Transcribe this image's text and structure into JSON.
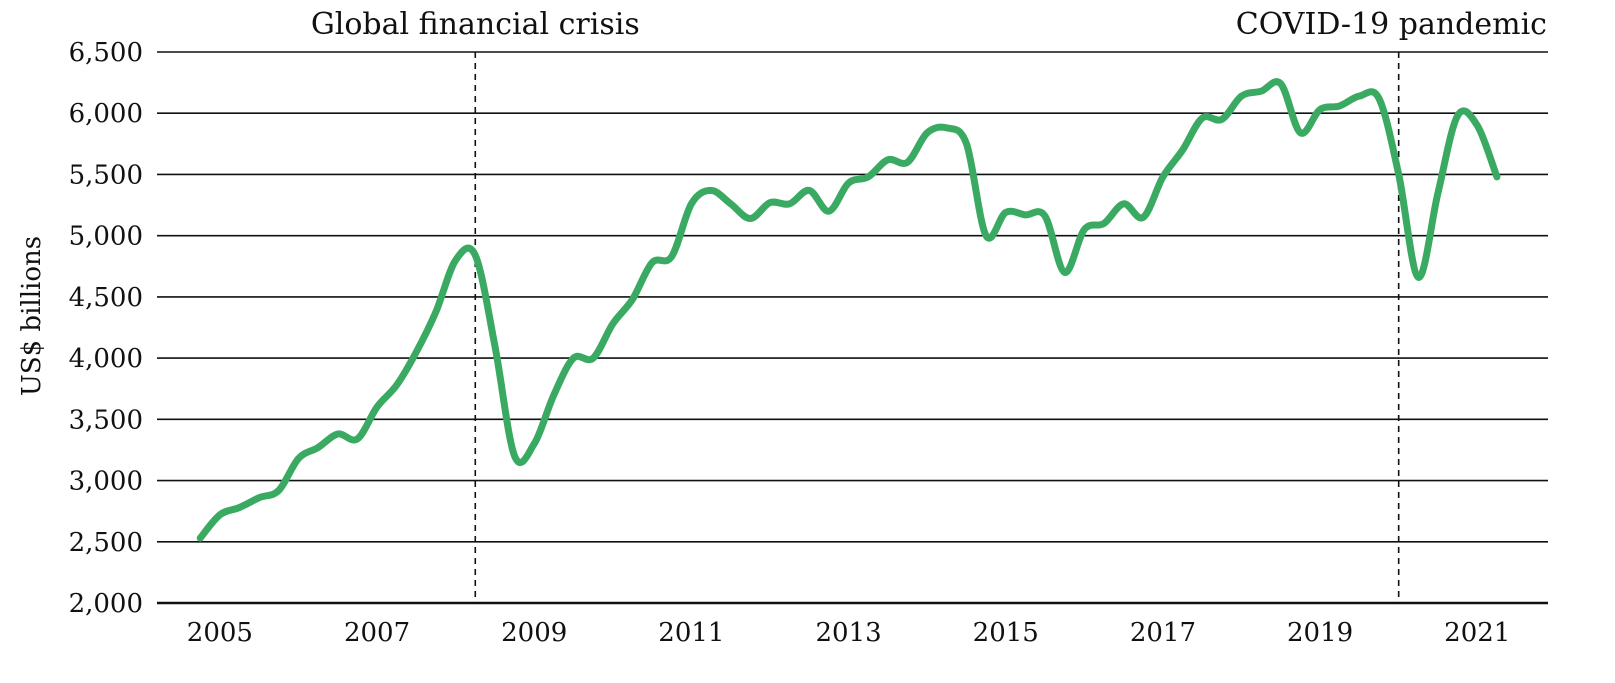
{
  "chart_data": {
    "type": "line",
    "title": "",
    "xlabel": "",
    "ylabel": "US$ billions",
    "ylim": [
      2000,
      6500
    ],
    "xlim": [
      2004.2,
      2021.9
    ],
    "yticks": [
      2000,
      2500,
      3000,
      3500,
      4000,
      4500,
      5000,
      5500,
      6000,
      6500
    ],
    "ytick_labels": [
      "2,000",
      "2,500",
      "3,000",
      "3,500",
      "4,000",
      "4,500",
      "5,000",
      "5,500",
      "6,000",
      "6,500"
    ],
    "xticks": [
      2005,
      2007,
      2009,
      2011,
      2013,
      2015,
      2017,
      2019,
      2021
    ],
    "xtick_labels": [
      "2005",
      "2007",
      "2009",
      "2011",
      "2013",
      "2015",
      "2017",
      "2019",
      "2021"
    ],
    "grid": "horizontal",
    "line_color": "#3aaa63",
    "annotations": [
      {
        "label": "Global financial crisis",
        "x": 2008.25
      },
      {
        "label": "COVID-19 pandemic",
        "x": 2020.0
      }
    ],
    "series": [
      {
        "name": "",
        "points": [
          [
            2004.75,
            2530
          ],
          [
            2005.0,
            2720
          ],
          [
            2005.25,
            2780
          ],
          [
            2005.5,
            2860
          ],
          [
            2005.75,
            2920
          ],
          [
            2006.0,
            3180
          ],
          [
            2006.25,
            3270
          ],
          [
            2006.5,
            3380
          ],
          [
            2006.75,
            3340
          ],
          [
            2007.0,
            3600
          ],
          [
            2007.25,
            3780
          ],
          [
            2007.5,
            4050
          ],
          [
            2007.75,
            4380
          ],
          [
            2008.0,
            4800
          ],
          [
            2008.25,
            4840
          ],
          [
            2008.5,
            4100
          ],
          [
            2008.75,
            3200
          ],
          [
            2009.0,
            3300
          ],
          [
            2009.25,
            3700
          ],
          [
            2009.5,
            4000
          ],
          [
            2009.75,
            4000
          ],
          [
            2010.0,
            4280
          ],
          [
            2010.25,
            4480
          ],
          [
            2010.5,
            4780
          ],
          [
            2010.75,
            4830
          ],
          [
            2011.0,
            5260
          ],
          [
            2011.25,
            5370
          ],
          [
            2011.5,
            5260
          ],
          [
            2011.75,
            5140
          ],
          [
            2012.0,
            5270
          ],
          [
            2012.25,
            5260
          ],
          [
            2012.5,
            5370
          ],
          [
            2012.75,
            5200
          ],
          [
            2013.0,
            5430
          ],
          [
            2013.25,
            5480
          ],
          [
            2013.5,
            5620
          ],
          [
            2013.75,
            5600
          ],
          [
            2014.0,
            5840
          ],
          [
            2014.25,
            5880
          ],
          [
            2014.5,
            5750
          ],
          [
            2014.75,
            5000
          ],
          [
            2015.0,
            5190
          ],
          [
            2015.25,
            5170
          ],
          [
            2015.5,
            5160
          ],
          [
            2015.75,
            4700
          ],
          [
            2016.0,
            5050
          ],
          [
            2016.25,
            5100
          ],
          [
            2016.5,
            5260
          ],
          [
            2016.75,
            5150
          ],
          [
            2017.0,
            5480
          ],
          [
            2017.25,
            5700
          ],
          [
            2017.5,
            5960
          ],
          [
            2017.75,
            5950
          ],
          [
            2018.0,
            6140
          ],
          [
            2018.25,
            6180
          ],
          [
            2018.5,
            6240
          ],
          [
            2018.75,
            5840
          ],
          [
            2019.0,
            6030
          ],
          [
            2019.25,
            6060
          ],
          [
            2019.5,
            6140
          ],
          [
            2019.75,
            6120
          ],
          [
            2020.0,
            5500
          ],
          [
            2020.25,
            4660
          ],
          [
            2020.5,
            5350
          ],
          [
            2020.75,
            5980
          ],
          [
            2021.0,
            5900
          ],
          [
            2021.25,
            5480
          ]
        ]
      }
    ]
  }
}
